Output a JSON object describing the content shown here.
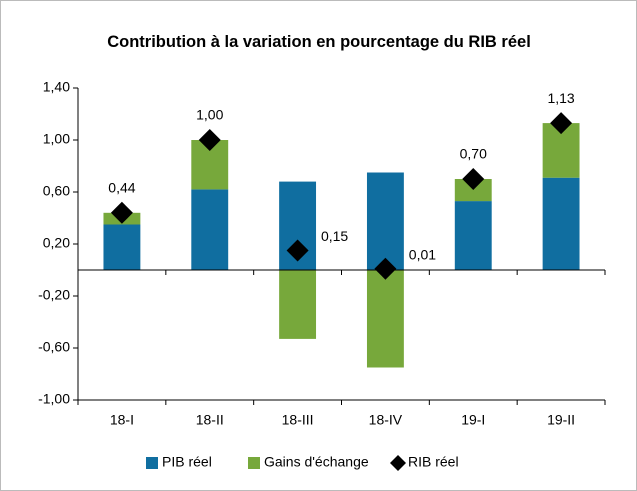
{
  "chart_data": {
    "type": "bar",
    "stacked": true,
    "title": "Contribution à la variation en pourcentage du RIB réel",
    "categories": [
      "18-I",
      "18-II",
      "18-III",
      "18-IV",
      "19-I",
      "19-II"
    ],
    "series": [
      {
        "name": "PIB réel",
        "type": "bar",
        "color": "#106ea0",
        "values": [
          0.35,
          0.62,
          0.68,
          0.75,
          0.53,
          0.71
        ]
      },
      {
        "name": "Gains d'échange",
        "type": "bar",
        "color": "#77a83b",
        "values": [
          0.09,
          0.38,
          -0.53,
          -0.75,
          0.17,
          0.42
        ]
      },
      {
        "name": "RIB réel",
        "type": "scatter",
        "color": "#000000",
        "values": [
          0.44,
          1.0,
          0.15,
          0.01,
          0.7,
          1.13
        ],
        "value_labels": [
          "0,44",
          "1,00",
          "0,15",
          "0,01",
          "0,70",
          "1,13"
        ]
      }
    ],
    "ylim": [
      -1.0,
      1.4
    ],
    "yticks": [
      {
        "value": -1.0,
        "label": "-1,00"
      },
      {
        "value": -0.6,
        "label": "-0,60"
      },
      {
        "value": -0.2,
        "label": "-0,20"
      },
      {
        "value": 0.2,
        "label": "0,20"
      },
      {
        "value": 0.6,
        "label": "0,60"
      },
      {
        "value": 1.0,
        "label": "1,00"
      },
      {
        "value": 1.4,
        "label": "1,40"
      }
    ],
    "grid": false,
    "legend": "bottom"
  }
}
